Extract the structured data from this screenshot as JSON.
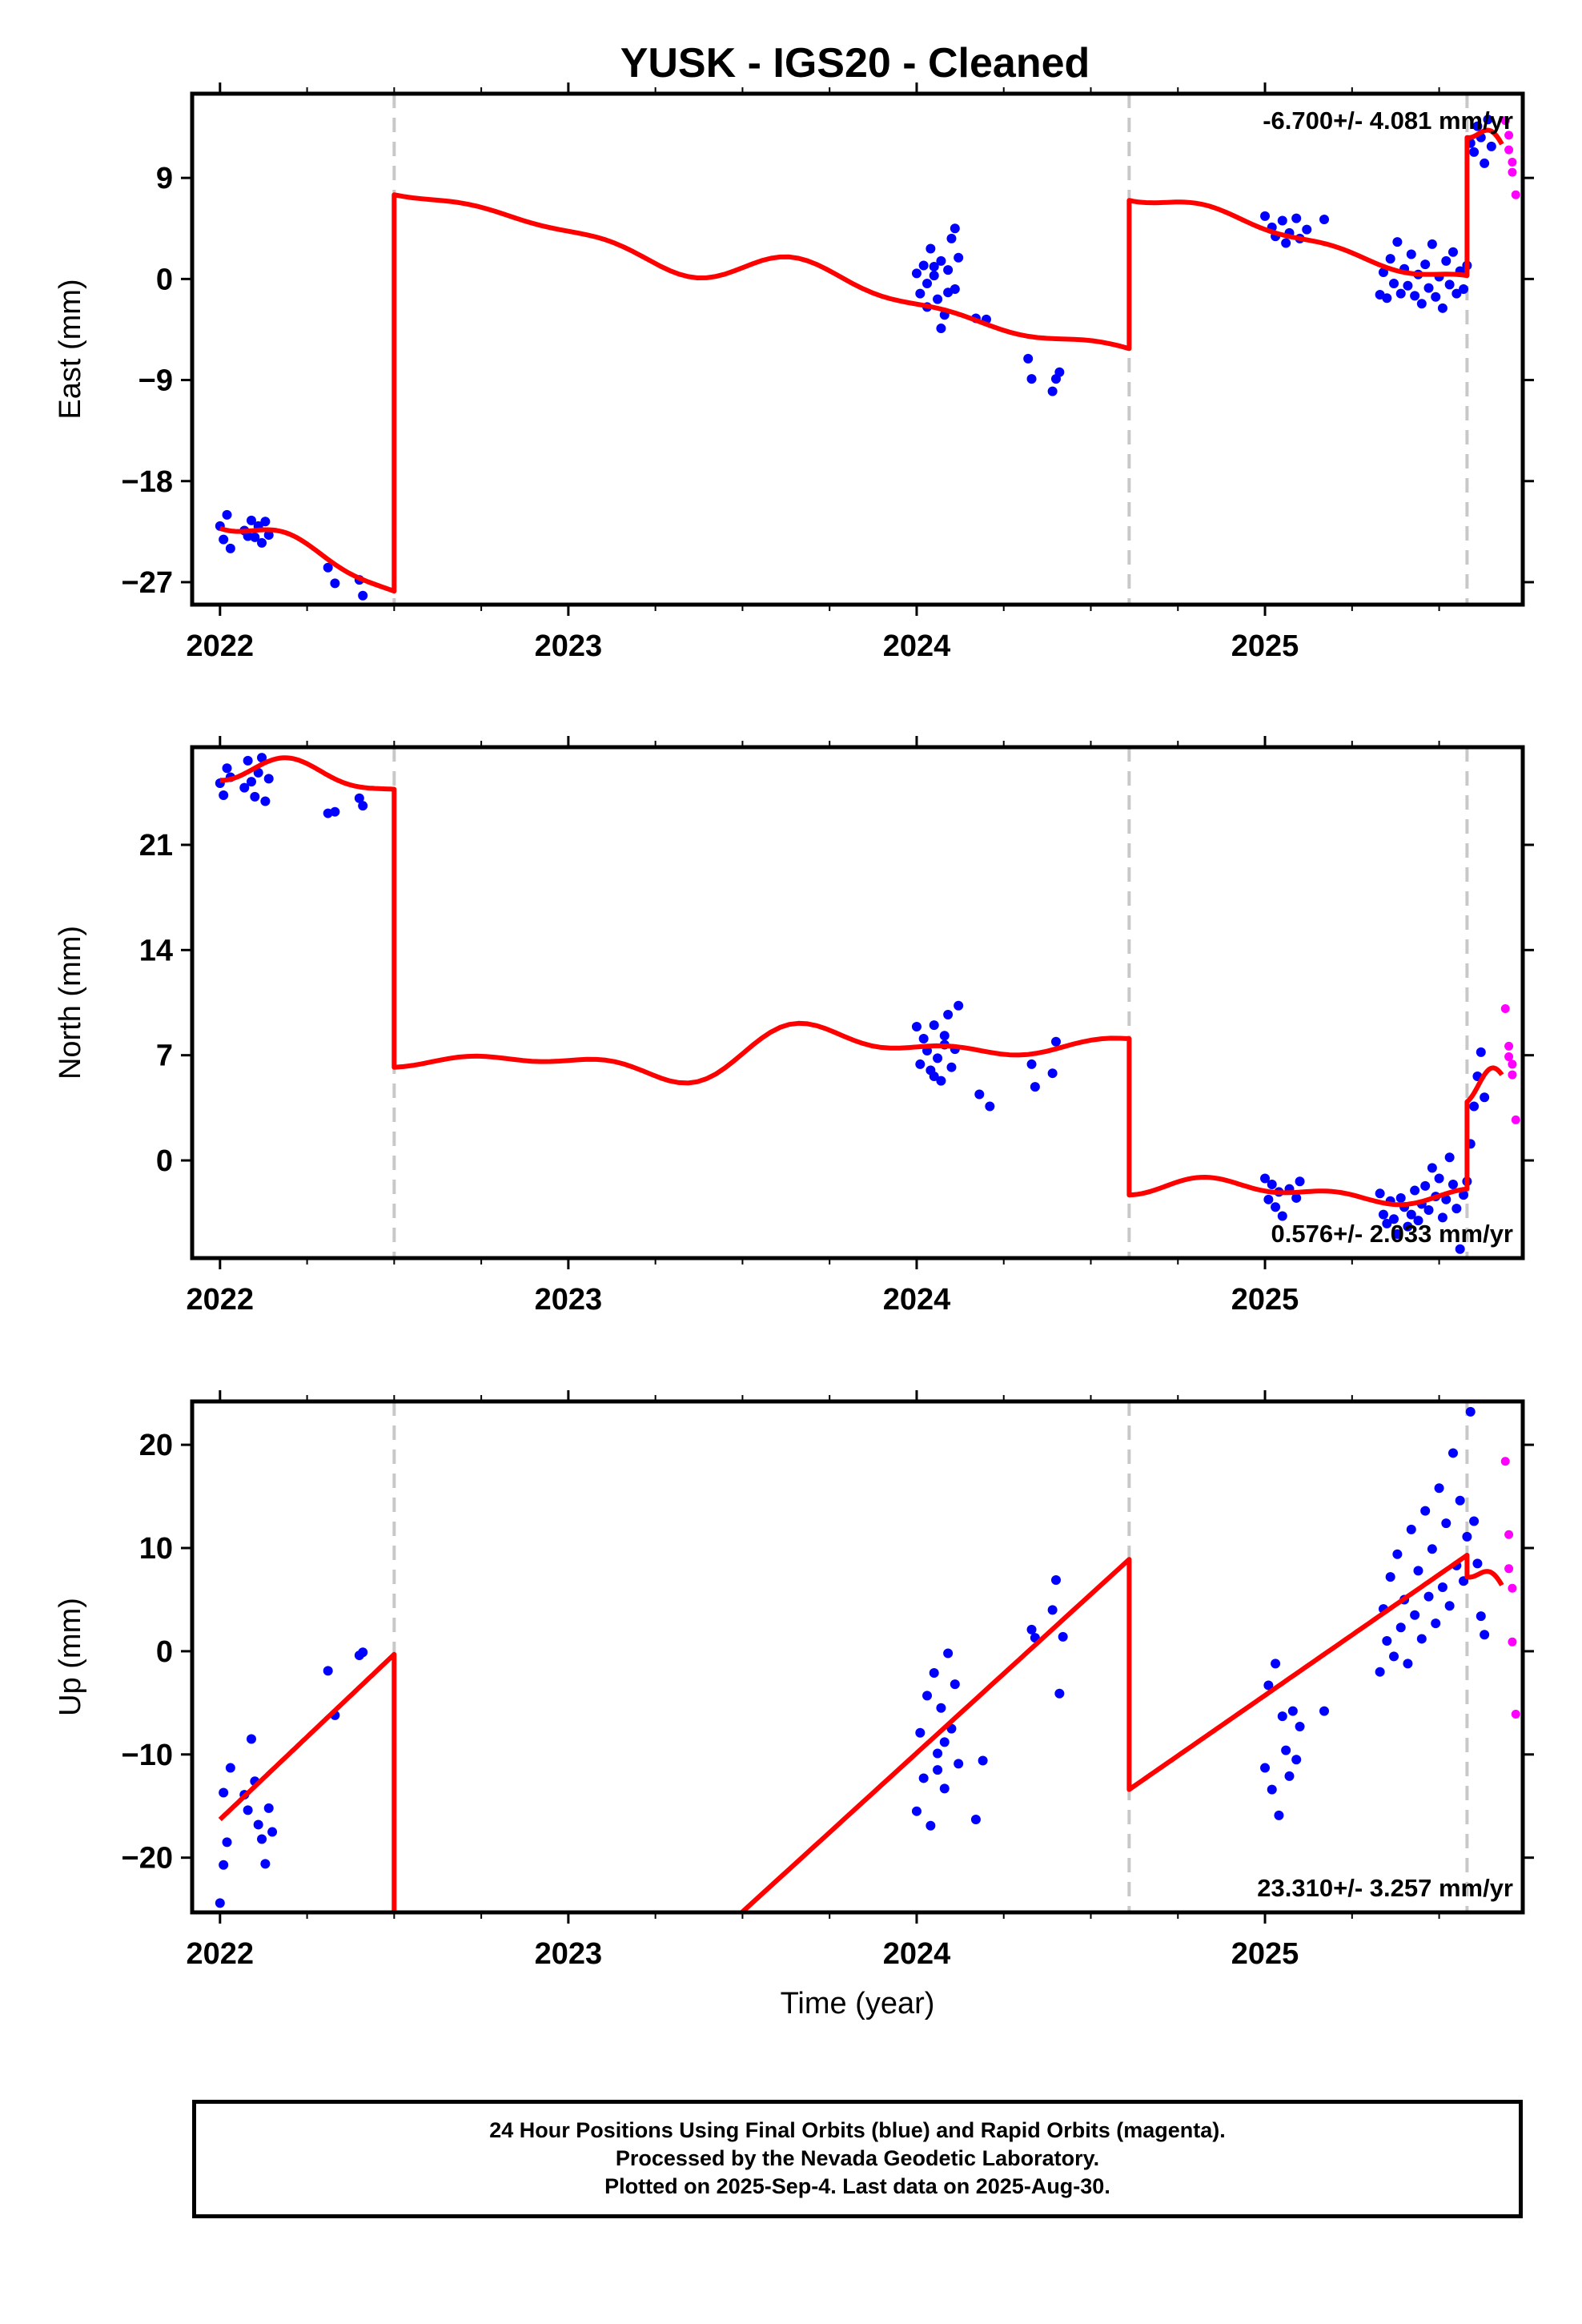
{
  "title": "YUSK  - IGS20 - Cleaned",
  "xlabel": "Time (year)",
  "footer": {
    "line1": "24 Hour Positions Using Final Orbits (blue) and Rapid Orbits (magenta).",
    "line2": "Processed by the Nevada Geodetic Laboratory.",
    "line3": "Plotted on 2025-Sep-4. Last data on 2025-Aug-30."
  },
  "colors": {
    "final": "#0000ff",
    "rapid": "#ff00ff",
    "model": "#ff0000",
    "steps": "#c8c8c8"
  },
  "chart_data": [
    {
      "type": "scatter",
      "ylabel": "East (mm)",
      "xlim": [
        2021.92,
        2025.74
      ],
      "ylim": [
        -29,
        16.5
      ],
      "xticks": [
        2022,
        2023,
        2024,
        2025
      ],
      "yticks": [
        -27,
        -18,
        -9,
        0,
        9
      ],
      "ytick_labels": [
        "−27",
        "−18",
        "−9",
        "0",
        "9"
      ],
      "rate_label": "-6.700+/- 4.081 mm/yr",
      "rate_position": "top-right",
      "steps": [
        2022.5,
        2024.61,
        2025.58
      ],
      "final": [
        [
          2022.0,
          -22
        ],
        [
          2022.01,
          -23.2
        ],
        [
          2022.02,
          -21
        ],
        [
          2022.03,
          -24
        ],
        [
          2022.07,
          -22.4
        ],
        [
          2022.08,
          -22.9
        ],
        [
          2022.09,
          -21.5
        ],
        [
          2022.1,
          -23
        ],
        [
          2022.11,
          -22
        ],
        [
          2022.12,
          -23.5
        ],
        [
          2022.13,
          -21.6
        ],
        [
          2022.14,
          -22.8
        ],
        [
          2022.31,
          -25.7
        ],
        [
          2022.33,
          -27.1
        ],
        [
          2022.4,
          -26.8
        ],
        [
          2022.41,
          -28.2
        ],
        [
          2024.0,
          0.5
        ],
        [
          2024.01,
          -1.3
        ],
        [
          2024.02,
          1.2
        ],
        [
          2024.03,
          -2.5
        ],
        [
          2024.04,
          2.7
        ],
        [
          2024.05,
          0.3
        ],
        [
          2024.06,
          -1.8
        ],
        [
          2024.07,
          1.6
        ],
        [
          2024.08,
          -3.2
        ],
        [
          2024.09,
          0.8
        ],
        [
          2024.1,
          3.6
        ],
        [
          2024.11,
          -0.9
        ],
        [
          2024.12,
          1.9
        ],
        [
          2024.03,
          -0.4
        ],
        [
          2024.05,
          1.1
        ],
        [
          2024.07,
          -4.4
        ],
        [
          2024.09,
          -1.2
        ],
        [
          2024.11,
          4.5
        ],
        [
          2024.17,
          -3.5
        ],
        [
          2024.2,
          -3.6
        ],
        [
          2024.32,
          -7.1
        ],
        [
          2024.33,
          -8.9
        ],
        [
          2024.39,
          -10
        ],
        [
          2024.41,
          -8.3
        ],
        [
          2024.4,
          -8.9
        ],
        [
          2025.0,
          5.6
        ],
        [
          2025.02,
          4.6
        ],
        [
          2025.03,
          3.8
        ],
        [
          2025.05,
          5.2
        ],
        [
          2025.06,
          3.2
        ],
        [
          2025.07,
          4.1
        ],
        [
          2025.09,
          5.4
        ],
        [
          2025.1,
          3.6
        ],
        [
          2025.12,
          4.4
        ],
        [
          2025.17,
          5.3
        ],
        [
          2025.33,
          -1.4
        ],
        [
          2025.34,
          0.6
        ],
        [
          2025.35,
          -1.7
        ],
        [
          2025.36,
          1.8
        ],
        [
          2025.37,
          -0.4
        ],
        [
          2025.38,
          3.3
        ],
        [
          2025.39,
          -1.3
        ],
        [
          2025.4,
          0.9
        ],
        [
          2025.41,
          -0.6
        ],
        [
          2025.42,
          2.2
        ],
        [
          2025.43,
          -1.5
        ],
        [
          2025.44,
          0.4
        ],
        [
          2025.45,
          -2.2
        ],
        [
          2025.46,
          1.3
        ],
        [
          2025.47,
          -0.8
        ],
        [
          2025.48,
          3.1
        ],
        [
          2025.49,
          -1.6
        ],
        [
          2025.5,
          0.2
        ],
        [
          2025.51,
          -2.6
        ],
        [
          2025.52,
          1.6
        ],
        [
          2025.53,
          -0.5
        ],
        [
          2025.54,
          2.4
        ],
        [
          2025.55,
          -1.3
        ],
        [
          2025.56,
          0.7
        ],
        [
          2025.57,
          -0.9
        ],
        [
          2025.58,
          1.2
        ],
        [
          2025.59,
          12.1
        ],
        [
          2025.6,
          11.3
        ],
        [
          2025.61,
          13.6
        ],
        [
          2025.62,
          12.6
        ],
        [
          2025.63,
          10.3
        ],
        [
          2025.64,
          14.2
        ],
        [
          2025.65,
          11.8
        ]
      ],
      "rapid": [
        [
          2025.69,
          14.1
        ],
        [
          2025.7,
          12.8
        ],
        [
          2025.7,
          11.5
        ],
        [
          2025.71,
          10.4
        ],
        [
          2025.71,
          9.5
        ],
        [
          2025.72,
          7.5
        ]
      ],
      "model_segments": [
        {
          "x0": 2022.0,
          "x1": 2022.5,
          "y0": -22.2,
          "y1": -27.8
        },
        {
          "x0": 2022.5,
          "x1": 2024.61,
          "y0": 7.5,
          "y1": -6.2
        },
        {
          "x0": 2024.61,
          "x1": 2025.58,
          "y0": 7.0,
          "y1": 0.3
        },
        {
          "x0": 2025.58,
          "x1": 2025.68,
          "y0": 12.6,
          "y1": 12.0
        }
      ]
    },
    {
      "type": "scatter",
      "ylabel": "North (mm)",
      "xlim": [
        2021.92,
        2025.74
      ],
      "ylim": [
        -6.5,
        27.5
      ],
      "xticks": [
        2022,
        2023,
        2024,
        2025
      ],
      "yticks": [
        0,
        7,
        14,
        21
      ],
      "ytick_labels": [
        "0",
        "7",
        "14",
        "21"
      ],
      "rate_label": "0.576+/- 2.033 mm/yr",
      "rate_position": "bottom-right",
      "steps": [
        2022.5,
        2024.61,
        2025.58
      ],
      "final": [
        [
          2022.0,
          25.1
        ],
        [
          2022.01,
          24.3
        ],
        [
          2022.02,
          26.1
        ],
        [
          2022.03,
          25.5
        ],
        [
          2022.07,
          24.8
        ],
        [
          2022.08,
          26.6
        ],
        [
          2022.09,
          25.2
        ],
        [
          2022.1,
          24.2
        ],
        [
          2022.11,
          25.8
        ],
        [
          2022.12,
          26.8
        ],
        [
          2022.13,
          23.9
        ],
        [
          2022.14,
          25.4
        ],
        [
          2022.31,
          23.1
        ],
        [
          2022.33,
          23.2
        ],
        [
          2022.4,
          24.1
        ],
        [
          2022.41,
          23.6
        ],
        [
          2024.0,
          8.9
        ],
        [
          2024.01,
          6.4
        ],
        [
          2024.02,
          8.1
        ],
        [
          2024.03,
          7.3
        ],
        [
          2024.04,
          6.0
        ],
        [
          2024.05,
          9.0
        ],
        [
          2024.06,
          6.8
        ],
        [
          2024.07,
          5.3
        ],
        [
          2024.08,
          7.7
        ],
        [
          2024.09,
          9.7
        ],
        [
          2024.1,
          6.2
        ],
        [
          2024.11,
          7.4
        ],
        [
          2024.12,
          10.3
        ],
        [
          2024.05,
          5.6
        ],
        [
          2024.08,
          8.3
        ],
        [
          2024.18,
          4.4
        ],
        [
          2024.21,
          3.6
        ],
        [
          2024.33,
          6.4
        ],
        [
          2024.34,
          4.9
        ],
        [
          2024.39,
          5.8
        ],
        [
          2024.4,
          7.9
        ],
        [
          2025.0,
          -1.2
        ],
        [
          2025.01,
          -2.6
        ],
        [
          2025.02,
          -1.6
        ],
        [
          2025.03,
          -3.1
        ],
        [
          2025.04,
          -2.1
        ],
        [
          2025.05,
          -3.7
        ],
        [
          2025.07,
          -1.9
        ],
        [
          2025.09,
          -2.5
        ],
        [
          2025.1,
          -1.4
        ],
        [
          2025.33,
          -2.2
        ],
        [
          2025.34,
          -3.6
        ],
        [
          2025.35,
          -4.2
        ],
        [
          2025.36,
          -2.7
        ],
        [
          2025.37,
          -3.9
        ],
        [
          2025.38,
          -4.9
        ],
        [
          2025.39,
          -2.5
        ],
        [
          2025.4,
          -3.1
        ],
        [
          2025.41,
          -4.4
        ],
        [
          2025.42,
          -3.6
        ],
        [
          2025.43,
          -2.0
        ],
        [
          2025.44,
          -4.0
        ],
        [
          2025.45,
          -2.9
        ],
        [
          2025.46,
          -1.7
        ],
        [
          2025.47,
          -3.3
        ],
        [
          2025.48,
          -0.5
        ],
        [
          2025.49,
          -2.4
        ],
        [
          2025.5,
          -1.2
        ],
        [
          2025.51,
          -3.8
        ],
        [
          2025.52,
          -2.6
        ],
        [
          2025.53,
          0.2
        ],
        [
          2025.54,
          -1.6
        ],
        [
          2025.55,
          -3.2
        ],
        [
          2025.56,
          -5.9
        ],
        [
          2025.57,
          -2.3
        ],
        [
          2025.58,
          -1.4
        ],
        [
          2025.59,
          1.1
        ],
        [
          2025.6,
          3.6
        ],
        [
          2025.61,
          5.6
        ],
        [
          2025.62,
          7.2
        ],
        [
          2025.63,
          4.2
        ]
      ],
      "rapid": [
        [
          2025.69,
          10.1
        ],
        [
          2025.7,
          6.9
        ],
        [
          2025.7,
          7.6
        ],
        [
          2025.71,
          6.4
        ],
        [
          2025.71,
          5.7
        ],
        [
          2025.72,
          2.7
        ]
      ],
      "model_segments": [
        {
          "x0": 2022.0,
          "x1": 2022.5,
          "y0": 25.3,
          "y1": 24.7
        },
        {
          "x0": 2022.5,
          "x1": 2024.61,
          "y0": 6.2,
          "y1": 8.1
        },
        {
          "x0": 2024.61,
          "x1": 2025.58,
          "y0": -2.3,
          "y1": -1.9
        },
        {
          "x0": 2025.58,
          "x1": 2025.68,
          "y0": 3.9,
          "y1": 5.7
        }
      ]
    },
    {
      "type": "scatter",
      "ylabel": "Up (mm)",
      "xlim": [
        2021.92,
        2025.74
      ],
      "ylim": [
        -25.3,
        24.2
      ],
      "xticks": [
        2022,
        2023,
        2024,
        2025
      ],
      "yticks": [
        -20,
        -10,
        0,
        10,
        20
      ],
      "ytick_labels": [
        "−20",
        "−10",
        "0",
        "10",
        "20"
      ],
      "rate_label": "23.310+/- 3.257 mm/yr",
      "rate_position": "bottom-right",
      "steps": [
        2022.5,
        2024.61,
        2025.58
      ],
      "final": [
        [
          2022.0,
          -24.4
        ],
        [
          2022.01,
          -20.7
        ],
        [
          2022.02,
          -18.5
        ],
        [
          2022.03,
          -11.3
        ],
        [
          2022.01,
          -13.7
        ],
        [
          2022.07,
          -13.9
        ],
        [
          2022.08,
          -15.4
        ],
        [
          2022.09,
          -8.5
        ],
        [
          2022.1,
          -12.6
        ],
        [
          2022.11,
          -16.8
        ],
        [
          2022.12,
          -18.2
        ],
        [
          2022.13,
          -20.6
        ],
        [
          2022.14,
          -15.2
        ],
        [
          2022.15,
          -17.5
        ],
        [
          2022.31,
          -1.9
        ],
        [
          2022.33,
          -6.2
        ],
        [
          2022.4,
          -0.4
        ],
        [
          2022.41,
          -0.1
        ],
        [
          2024.0,
          -15.5
        ],
        [
          2024.01,
          -7.9
        ],
        [
          2024.02,
          -12.3
        ],
        [
          2024.03,
          -4.3
        ],
        [
          2024.04,
          -16.9
        ],
        [
          2024.05,
          -2.1
        ],
        [
          2024.06,
          -9.9
        ],
        [
          2024.07,
          -5.5
        ],
        [
          2024.08,
          -13.3
        ],
        [
          2024.09,
          -0.2
        ],
        [
          2024.1,
          -7.5
        ],
        [
          2024.11,
          -3.2
        ],
        [
          2024.12,
          -10.9
        ],
        [
          2024.06,
          -11.5
        ],
        [
          2024.08,
          -8.8
        ],
        [
          2024.17,
          -16.3
        ],
        [
          2024.19,
          -10.6
        ],
        [
          2024.33,
          2.1
        ],
        [
          2024.34,
          1.3
        ],
        [
          2024.39,
          4.0
        ],
        [
          2024.4,
          6.9
        ],
        [
          2024.41,
          -4.1
        ],
        [
          2024.42,
          1.4
        ],
        [
          2025.0,
          -11.3
        ],
        [
          2025.01,
          -3.3
        ],
        [
          2025.02,
          -13.4
        ],
        [
          2025.03,
          -1.2
        ],
        [
          2025.04,
          -15.9
        ],
        [
          2025.05,
          -6.3
        ],
        [
          2025.06,
          -9.6
        ],
        [
          2025.07,
          -12.1
        ],
        [
          2025.08,
          -5.8
        ],
        [
          2025.09,
          -10.5
        ],
        [
          2025.1,
          -7.3
        ],
        [
          2025.17,
          -5.8
        ],
        [
          2025.33,
          -2.0
        ],
        [
          2025.34,
          4.1
        ],
        [
          2025.35,
          1.0
        ],
        [
          2025.36,
          7.2
        ],
        [
          2025.37,
          -0.5
        ],
        [
          2025.38,
          9.4
        ],
        [
          2025.39,
          2.3
        ],
        [
          2025.4,
          5.0
        ],
        [
          2025.41,
          -1.2
        ],
        [
          2025.42,
          11.8
        ],
        [
          2025.43,
          3.5
        ],
        [
          2025.44,
          7.8
        ],
        [
          2025.45,
          1.2
        ],
        [
          2025.46,
          13.6
        ],
        [
          2025.47,
          5.3
        ],
        [
          2025.48,
          9.9
        ],
        [
          2025.49,
          2.7
        ],
        [
          2025.5,
          15.8
        ],
        [
          2025.51,
          6.2
        ],
        [
          2025.52,
          12.4
        ],
        [
          2025.53,
          4.4
        ],
        [
          2025.54,
          19.2
        ],
        [
          2025.55,
          8.3
        ],
        [
          2025.56,
          14.6
        ],
        [
          2025.57,
          6.8
        ],
        [
          2025.58,
          11.1
        ],
        [
          2025.59,
          23.2
        ],
        [
          2025.6,
          12.6
        ],
        [
          2025.61,
          8.5
        ],
        [
          2025.62,
          3.4
        ],
        [
          2025.63,
          1.6
        ]
      ],
      "rapid": [
        [
          2025.69,
          18.4
        ],
        [
          2025.7,
          11.3
        ],
        [
          2025.7,
          8.0
        ],
        [
          2025.71,
          6.1
        ],
        [
          2025.71,
          0.9
        ],
        [
          2025.72,
          -6.1
        ]
      ],
      "model_segments": [
        {
          "x0": 2022.0,
          "x1": 2022.5,
          "y0": -16.3,
          "y1": -0.3
        },
        {
          "x0": 2022.5,
          "x1": 2024.61,
          "y0": -56.0,
          "y1": 8.9
        },
        {
          "x0": 2024.61,
          "x1": 2025.58,
          "y0": -13.4,
          "y1": 9.3
        },
        {
          "x0": 2025.58,
          "x1": 2025.68,
          "y0": 7.2,
          "y1": 6.4
        }
      ]
    }
  ]
}
